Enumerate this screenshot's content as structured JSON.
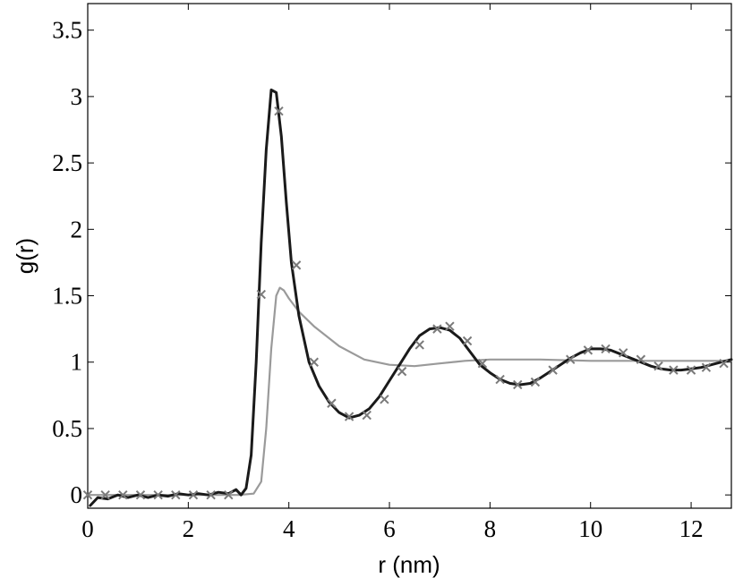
{
  "chart_data": {
    "type": "line",
    "title": "",
    "xlabel": "r (nm)",
    "ylabel": "g(r)",
    "xlim": [
      0,
      12.8
    ],
    "ylim": [
      -0.1,
      3.7
    ],
    "x_ticks": [
      0,
      2,
      4,
      6,
      8,
      10,
      12
    ],
    "x_tick_labels": [
      "0",
      "2",
      "4",
      "6",
      "8",
      "10",
      "12"
    ],
    "y_ticks": [
      0,
      0.5,
      1,
      1.5,
      2,
      2.5,
      3,
      3.5
    ],
    "y_tick_labels": [
      "0",
      "0.5",
      "1",
      "1.5",
      "2",
      "2.5",
      "3",
      "3.5"
    ],
    "grid": false,
    "legend": "none",
    "series": [
      {
        "style": "line",
        "color": "#1a1a1a",
        "points": [
          [
            0.05,
            -0.08
          ],
          [
            0.2,
            -0.02
          ],
          [
            0.4,
            -0.03
          ],
          [
            0.6,
            0.0
          ],
          [
            0.8,
            -0.02
          ],
          [
            1.0,
            0.0
          ],
          [
            1.2,
            -0.02
          ],
          [
            1.4,
            0.0
          ],
          [
            1.6,
            -0.01
          ],
          [
            1.8,
            0.01
          ],
          [
            2.0,
            0.0
          ],
          [
            2.2,
            0.01
          ],
          [
            2.4,
            0.0
          ],
          [
            2.6,
            0.02
          ],
          [
            2.8,
            0.01
          ],
          [
            2.95,
            0.04
          ],
          [
            3.05,
            0.0
          ],
          [
            3.15,
            0.05
          ],
          [
            3.25,
            0.3
          ],
          [
            3.35,
            1.0
          ],
          [
            3.45,
            1.9
          ],
          [
            3.55,
            2.6
          ],
          [
            3.65,
            3.05
          ],
          [
            3.75,
            3.03
          ],
          [
            3.85,
            2.7
          ],
          [
            3.95,
            2.2
          ],
          [
            4.05,
            1.75
          ],
          [
            4.2,
            1.35
          ],
          [
            4.4,
            1.0
          ],
          [
            4.6,
            0.82
          ],
          [
            4.8,
            0.7
          ],
          [
            5.0,
            0.62
          ],
          [
            5.2,
            0.58
          ],
          [
            5.4,
            0.6
          ],
          [
            5.6,
            0.65
          ],
          [
            5.8,
            0.74
          ],
          [
            6.0,
            0.86
          ],
          [
            6.2,
            0.98
          ],
          [
            6.4,
            1.1
          ],
          [
            6.6,
            1.2
          ],
          [
            6.8,
            1.25
          ],
          [
            7.0,
            1.26
          ],
          [
            7.2,
            1.24
          ],
          [
            7.4,
            1.18
          ],
          [
            7.6,
            1.08
          ],
          [
            7.8,
            0.98
          ],
          [
            8.0,
            0.92
          ],
          [
            8.2,
            0.87
          ],
          [
            8.4,
            0.84
          ],
          [
            8.6,
            0.83
          ],
          [
            8.8,
            0.84
          ],
          [
            9.0,
            0.88
          ],
          [
            9.2,
            0.93
          ],
          [
            9.4,
            0.98
          ],
          [
            9.6,
            1.03
          ],
          [
            9.8,
            1.07
          ],
          [
            10.0,
            1.1
          ],
          [
            10.2,
            1.1
          ],
          [
            10.4,
            1.09
          ],
          [
            10.6,
            1.06
          ],
          [
            10.8,
            1.03
          ],
          [
            11.0,
            1.0
          ],
          [
            11.2,
            0.97
          ],
          [
            11.4,
            0.95
          ],
          [
            11.6,
            0.94
          ],
          [
            11.8,
            0.94
          ],
          [
            12.0,
            0.95
          ],
          [
            12.2,
            0.96
          ],
          [
            12.4,
            0.98
          ],
          [
            12.6,
            1.0
          ],
          [
            12.8,
            1.02
          ]
        ]
      },
      {
        "style": "line",
        "color": "#9a9a9a",
        "points": [
          [
            0.0,
            0.0
          ],
          [
            1.0,
            0.0
          ],
          [
            2.0,
            0.0
          ],
          [
            3.0,
            0.0
          ],
          [
            3.3,
            0.01
          ],
          [
            3.45,
            0.1
          ],
          [
            3.55,
            0.5
          ],
          [
            3.65,
            1.1
          ],
          [
            3.75,
            1.5
          ],
          [
            3.82,
            1.56
          ],
          [
            3.9,
            1.54
          ],
          [
            4.0,
            1.48
          ],
          [
            4.2,
            1.38
          ],
          [
            4.5,
            1.27
          ],
          [
            5.0,
            1.12
          ],
          [
            5.5,
            1.02
          ],
          [
            6.0,
            0.98
          ],
          [
            6.5,
            0.97
          ],
          [
            7.0,
            0.99
          ],
          [
            7.5,
            1.01
          ],
          [
            8.0,
            1.02
          ],
          [
            9.0,
            1.02
          ],
          [
            10.0,
            1.01
          ],
          [
            11.0,
            1.01
          ],
          [
            12.0,
            1.01
          ],
          [
            12.8,
            1.01
          ]
        ]
      },
      {
        "style": "markers",
        "marker": "x",
        "color": "#7a7a7a",
        "points": [
          [
            0.0,
            0.0
          ],
          [
            0.35,
            0.0
          ],
          [
            0.7,
            0.0
          ],
          [
            1.05,
            0.0
          ],
          [
            1.4,
            0.0
          ],
          [
            1.75,
            0.0
          ],
          [
            2.1,
            0.0
          ],
          [
            2.45,
            0.0
          ],
          [
            2.8,
            0.0
          ],
          [
            3.45,
            1.51
          ],
          [
            3.8,
            2.89
          ],
          [
            4.15,
            1.73
          ],
          [
            4.5,
            1.0
          ],
          [
            4.85,
            0.69
          ],
          [
            5.2,
            0.59
          ],
          [
            5.55,
            0.6
          ],
          [
            5.9,
            0.72
          ],
          [
            6.25,
            0.93
          ],
          [
            6.6,
            1.13
          ],
          [
            6.95,
            1.25
          ],
          [
            7.2,
            1.27
          ],
          [
            7.55,
            1.16
          ],
          [
            7.85,
            0.99
          ],
          [
            8.2,
            0.87
          ],
          [
            8.55,
            0.83
          ],
          [
            8.9,
            0.85
          ],
          [
            9.25,
            0.94
          ],
          [
            9.6,
            1.02
          ],
          [
            9.95,
            1.09
          ],
          [
            10.3,
            1.1
          ],
          [
            10.65,
            1.07
          ],
          [
            11.0,
            1.02
          ],
          [
            11.35,
            0.97
          ],
          [
            11.65,
            0.94
          ],
          [
            12.0,
            0.94
          ],
          [
            12.3,
            0.96
          ],
          [
            12.65,
            0.99
          ]
        ]
      }
    ]
  }
}
